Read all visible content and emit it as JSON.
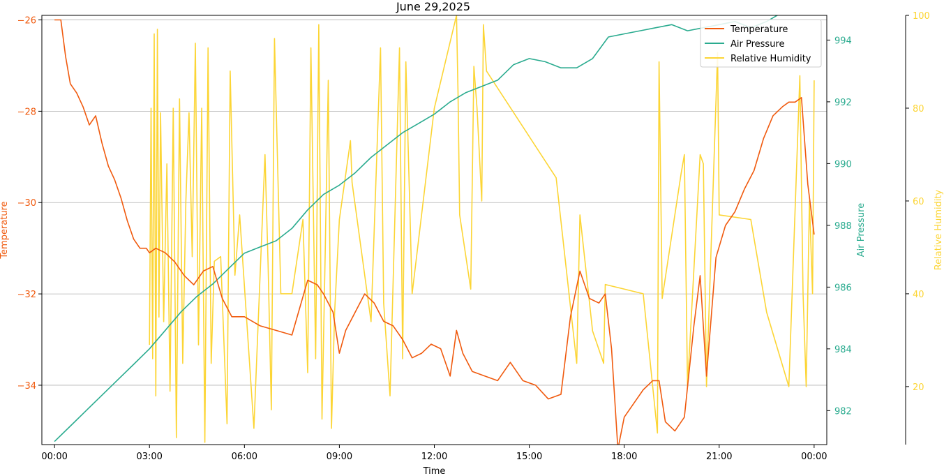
{
  "colors": {
    "temperature": "#f05a0e",
    "pressure": "#2aab8f",
    "humidity": "#fcd535",
    "grid": "#b0b0b0",
    "axis": "#000000"
  },
  "chart_data": {
    "type": "line",
    "title": "June 29,2025",
    "xlabel": "Time",
    "x_unit": "hours since 00:00",
    "xlim": [
      -0.4,
      24.4
    ],
    "xticks": [
      {
        "v": 0,
        "label": "00:00"
      },
      {
        "v": 3,
        "label": "03:00"
      },
      {
        "v": 6,
        "label": "06:00"
      },
      {
        "v": 9,
        "label": "09:00"
      },
      {
        "v": 12,
        "label": "12:00"
      },
      {
        "v": 15,
        "label": "15:00"
      },
      {
        "v": 18,
        "label": "18:00"
      },
      {
        "v": 21,
        "label": "21:00"
      },
      {
        "v": 24,
        "label": "00:00"
      }
    ],
    "grid": "horizontal (left axis)",
    "legend_position": "top-right",
    "series": [
      {
        "name": "Temperature",
        "axis": "left",
        "ylabel": "Temperature",
        "ylim": [
          -35.3,
          -25.9
        ],
        "yticks": [
          -26,
          -28,
          -30,
          -32,
          -34
        ],
        "ytick_labels": [
          "−26",
          "−28",
          "−30",
          "−32",
          "−34"
        ],
        "x": [
          0,
          0.2,
          0.35,
          0.5,
          0.7,
          0.9,
          1.1,
          1.3,
          1.5,
          1.7,
          1.9,
          2.1,
          2.3,
          2.5,
          2.7,
          2.9,
          3.0,
          3.2,
          3.5,
          3.8,
          4.1,
          4.4,
          4.7,
          5.0,
          5.3,
          5.6,
          6.0,
          6.5,
          7.0,
          7.5,
          8.0,
          8.3,
          8.5,
          8.8,
          9.0,
          9.2,
          9.5,
          9.8,
          10.1,
          10.4,
          10.7,
          11.0,
          11.3,
          11.6,
          11.9,
          12.2,
          12.5,
          12.7,
          12.9,
          13.2,
          13.6,
          14.0,
          14.4,
          14.8,
          15.2,
          15.6,
          16.0,
          16.3,
          16.6,
          16.9,
          17.2,
          17.4,
          17.6,
          17.8,
          18.0,
          18.3,
          18.6,
          18.9,
          19.1,
          19.3,
          19.6,
          19.9,
          20.2,
          20.4,
          20.6,
          20.9,
          21.2,
          21.5,
          21.8,
          22.1,
          22.4,
          22.7,
          23.0,
          23.2,
          23.4,
          23.6,
          23.8,
          24.0
        ],
        "y": [
          -26.0,
          -26.0,
          -26.8,
          -27.4,
          -27.6,
          -27.9,
          -28.3,
          -28.1,
          -28.7,
          -29.2,
          -29.5,
          -29.9,
          -30.4,
          -30.8,
          -31.0,
          -31.0,
          -31.1,
          -31.0,
          -31.1,
          -31.3,
          -31.6,
          -31.8,
          -31.5,
          -31.4,
          -32.1,
          -32.5,
          -32.5,
          -32.7,
          -32.8,
          -32.9,
          -31.7,
          -31.8,
          -32.0,
          -32.4,
          -33.3,
          -32.8,
          -32.4,
          -32.0,
          -32.2,
          -32.6,
          -32.7,
          -33.0,
          -33.4,
          -33.3,
          -33.1,
          -33.2,
          -33.8,
          -32.8,
          -33.3,
          -33.7,
          -33.8,
          -33.9,
          -33.5,
          -33.9,
          -34.0,
          -34.3,
          -34.2,
          -32.5,
          -31.5,
          -32.1,
          -32.2,
          -32.0,
          -33.2,
          -35.4,
          -34.7,
          -34.4,
          -34.1,
          -33.9,
          -33.9,
          -34.8,
          -35.0,
          -34.7,
          -32.7,
          -31.6,
          -33.8,
          -31.2,
          -30.5,
          -30.2,
          -29.7,
          -29.3,
          -28.6,
          -28.1,
          -27.9,
          -27.8,
          -27.8,
          -27.7,
          -29.6,
          -30.7
        ]
      },
      {
        "name": "Air Pressure",
        "axis": "right",
        "ylabel": "Air Pressure",
        "ylim": [
          980.9,
          994.8
        ],
        "yticks": [
          982,
          984,
          986,
          988,
          990,
          992,
          994
        ],
        "x": [
          0,
          0.5,
          1.0,
          1.5,
          2.0,
          2.5,
          3.0,
          3.5,
          4.0,
          4.5,
          5.0,
          5.5,
          6.0,
          6.5,
          7.0,
          7.5,
          8.0,
          8.5,
          9.0,
          9.5,
          10.0,
          10.5,
          11.0,
          11.5,
          12.0,
          12.5,
          13.0,
          13.5,
          14.0,
          14.5,
          15.0,
          15.5,
          16.0,
          16.5,
          17.0,
          17.5,
          18.0,
          18.5,
          19.0,
          19.5,
          20.0,
          20.5,
          21.0,
          21.5,
          22.0,
          22.5,
          23.0
        ],
        "y": [
          981.0,
          981.5,
          982.0,
          982.5,
          983.0,
          983.5,
          984.0,
          984.6,
          985.2,
          985.7,
          986.1,
          986.6,
          987.1,
          987.3,
          987.5,
          987.9,
          988.5,
          989.0,
          989.3,
          989.7,
          990.2,
          990.6,
          991.0,
          991.3,
          991.6,
          992.0,
          992.3,
          992.5,
          992.7,
          993.2,
          993.4,
          993.3,
          993.1,
          993.1,
          993.4,
          994.1,
          994.2,
          994.3,
          994.4,
          994.5,
          994.3,
          994.4,
          994.5,
          994.6,
          994.4,
          994.6,
          994.9
        ]
      },
      {
        "name": "Relative Humidity",
        "axis": "right2",
        "ylabel": "Relative Humidity",
        "ylim": [
          7.5,
          100
        ],
        "yticks": [
          20,
          40,
          60,
          80,
          100
        ],
        "x": [
          3.0,
          3.05,
          3.1,
          3.15,
          3.2,
          3.25,
          3.3,
          3.35,
          3.45,
          3.55,
          3.65,
          3.75,
          3.85,
          3.95,
          4.05,
          4.15,
          4.25,
          4.35,
          4.45,
          4.55,
          4.65,
          4.75,
          4.85,
          4.95,
          5.05,
          5.25,
          5.45,
          5.55,
          5.7,
          5.85,
          6.3,
          6.65,
          6.75,
          6.85,
          6.95,
          7.15,
          7.5,
          7.85,
          8.0,
          8.1,
          8.25,
          8.35,
          8.45,
          8.55,
          8.65,
          8.75,
          8.85,
          9.0,
          9.35,
          9.4,
          10.0,
          10.3,
          10.4,
          10.6,
          10.9,
          11.0,
          11.1,
          11.3,
          12.0,
          12.7,
          12.75,
          12.8,
          13.15,
          13.25,
          13.35,
          13.5,
          13.55,
          13.65,
          15.85,
          16.5,
          16.6,
          17.0,
          17.35,
          17.4,
          18.6,
          19.05,
          19.1,
          19.2,
          19.8,
          19.9,
          20.0,
          20.4,
          20.5,
          20.6,
          20.95,
          21.0,
          22.0,
          22.5,
          23.2,
          23.55,
          23.65,
          23.75,
          23.85,
          23.95,
          24.0
        ],
        "y": [
          29,
          80,
          26,
          96,
          18,
          97,
          35,
          79,
          34,
          68,
          19,
          80,
          9,
          82,
          25,
          60,
          79,
          48,
          94,
          29,
          80,
          8,
          93,
          25,
          47,
          48,
          12,
          88,
          44,
          57,
          11,
          70,
          46,
          15,
          95,
          40,
          40,
          56,
          23,
          93,
          26,
          98,
          13,
          48,
          86,
          11,
          36,
          56,
          73,
          64,
          34,
          93,
          38,
          18,
          93,
          26,
          90,
          40,
          80,
          100,
          83,
          57,
          41,
          89,
          80,
          60,
          98,
          88,
          65,
          25,
          57,
          32,
          25,
          42,
          40,
          10,
          90,
          39,
          66,
          70,
          20,
          70,
          68,
          20,
          92,
          57,
          56,
          36,
          20,
          87,
          40,
          20,
          60,
          40,
          86
        ]
      }
    ]
  }
}
